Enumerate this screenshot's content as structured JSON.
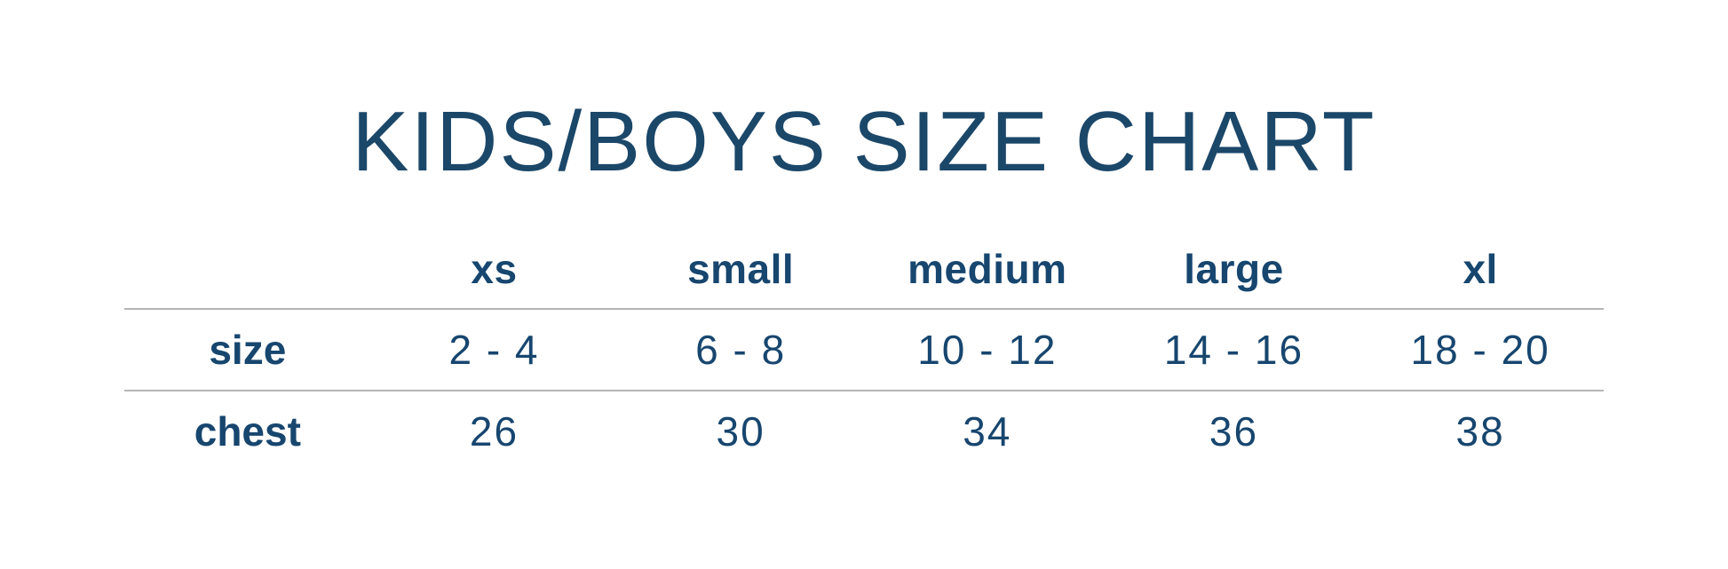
{
  "title": "KIDS/BOYS SIZE CHART",
  "colors": {
    "text_navy": "#17466F",
    "title_navy": "#1B4769",
    "divider_gray": "#B5B5B5",
    "background": "#FFFFFF"
  },
  "table": {
    "columns": [
      "xs",
      "small",
      "medium",
      "large",
      "xl"
    ],
    "rows": [
      {
        "label": "size",
        "values": [
          "2 - 4",
          "6 - 8",
          "10 - 12",
          "14 - 16",
          "18 - 20"
        ]
      },
      {
        "label": "chest",
        "values": [
          "26",
          "30",
          "34",
          "36",
          "38"
        ]
      }
    ]
  },
  "chart_data": {
    "type": "table",
    "title": "KIDS/BOYS SIZE CHART",
    "column_headers": [
      "",
      "xs",
      "small",
      "medium",
      "large",
      "xl"
    ],
    "rows": [
      [
        "size",
        "2 - 4",
        "6 - 8",
        "10 - 12",
        "14 - 16",
        "18 - 20"
      ],
      [
        "chest",
        "26",
        "30",
        "34",
        "36",
        "38"
      ]
    ],
    "layout_hints": {
      "grid": "horizontal rules only, below header row and below size row",
      "first_column_align": "left",
      "data_columns_align": "center"
    }
  }
}
